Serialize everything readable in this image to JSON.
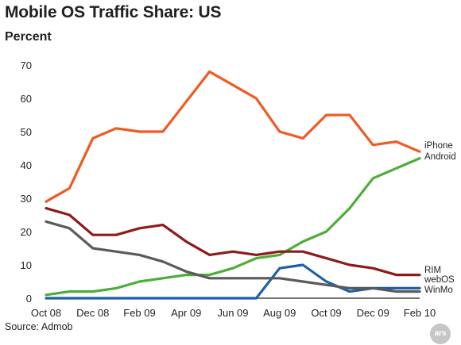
{
  "chart_data": {
    "type": "line",
    "title": "Mobile OS Traffic Share: US",
    "ylabel": "Percent",
    "source": "Source: Admob",
    "ylim": [
      0,
      70
    ],
    "yticks": [
      0,
      10,
      20,
      30,
      40,
      50,
      60,
      70
    ],
    "grid": false,
    "x": [
      "Oct 08",
      "Nov 08",
      "Dec 08",
      "Jan 09",
      "Feb 09",
      "Mar 09",
      "Apr 09",
      "May 09",
      "Jun 09",
      "Jul 09",
      "Aug 09",
      "Sep 09",
      "Oct 09",
      "Nov 09",
      "Dec 09",
      "Jan 10",
      "Feb 10"
    ],
    "xticklabels": [
      "Oct 08",
      "Dec 08",
      "Feb 09",
      "Apr 09",
      "Jun 09",
      "Aug 09",
      "Oct 09",
      "Dec 09",
      "Feb 10"
    ],
    "series": [
      {
        "name": "iPhone",
        "color": "#f05a22",
        "values": [
          29,
          33,
          48,
          51,
          50,
          50,
          59,
          68,
          64,
          60,
          50,
          48,
          55,
          55,
          46,
          47,
          44
        ]
      },
      {
        "name": "Android",
        "color": "#4cae38",
        "values": [
          1,
          2,
          2,
          3,
          5,
          6,
          7,
          7,
          9,
          12,
          13,
          17,
          20,
          27,
          36,
          39,
          42
        ]
      },
      {
        "name": "RIM",
        "color": "#8e1a1a",
        "values": [
          27,
          25,
          19,
          19,
          21,
          22,
          17,
          13,
          14,
          13,
          14,
          14,
          12,
          10,
          9,
          7,
          7
        ]
      },
      {
        "name": "webOS",
        "color": "#1f5fa6",
        "values": [
          0,
          0,
          0,
          0,
          0,
          0,
          0,
          0,
          0,
          0,
          9,
          10,
          5,
          2,
          3,
          3,
          3
        ]
      },
      {
        "name": "WinMo",
        "color": "#5a5a5a",
        "values": [
          23,
          21,
          15,
          14,
          13,
          11,
          8,
          6,
          6,
          6,
          6,
          5,
          4,
          3,
          3,
          2,
          2
        ]
      }
    ]
  },
  "ars_logo": "ars"
}
